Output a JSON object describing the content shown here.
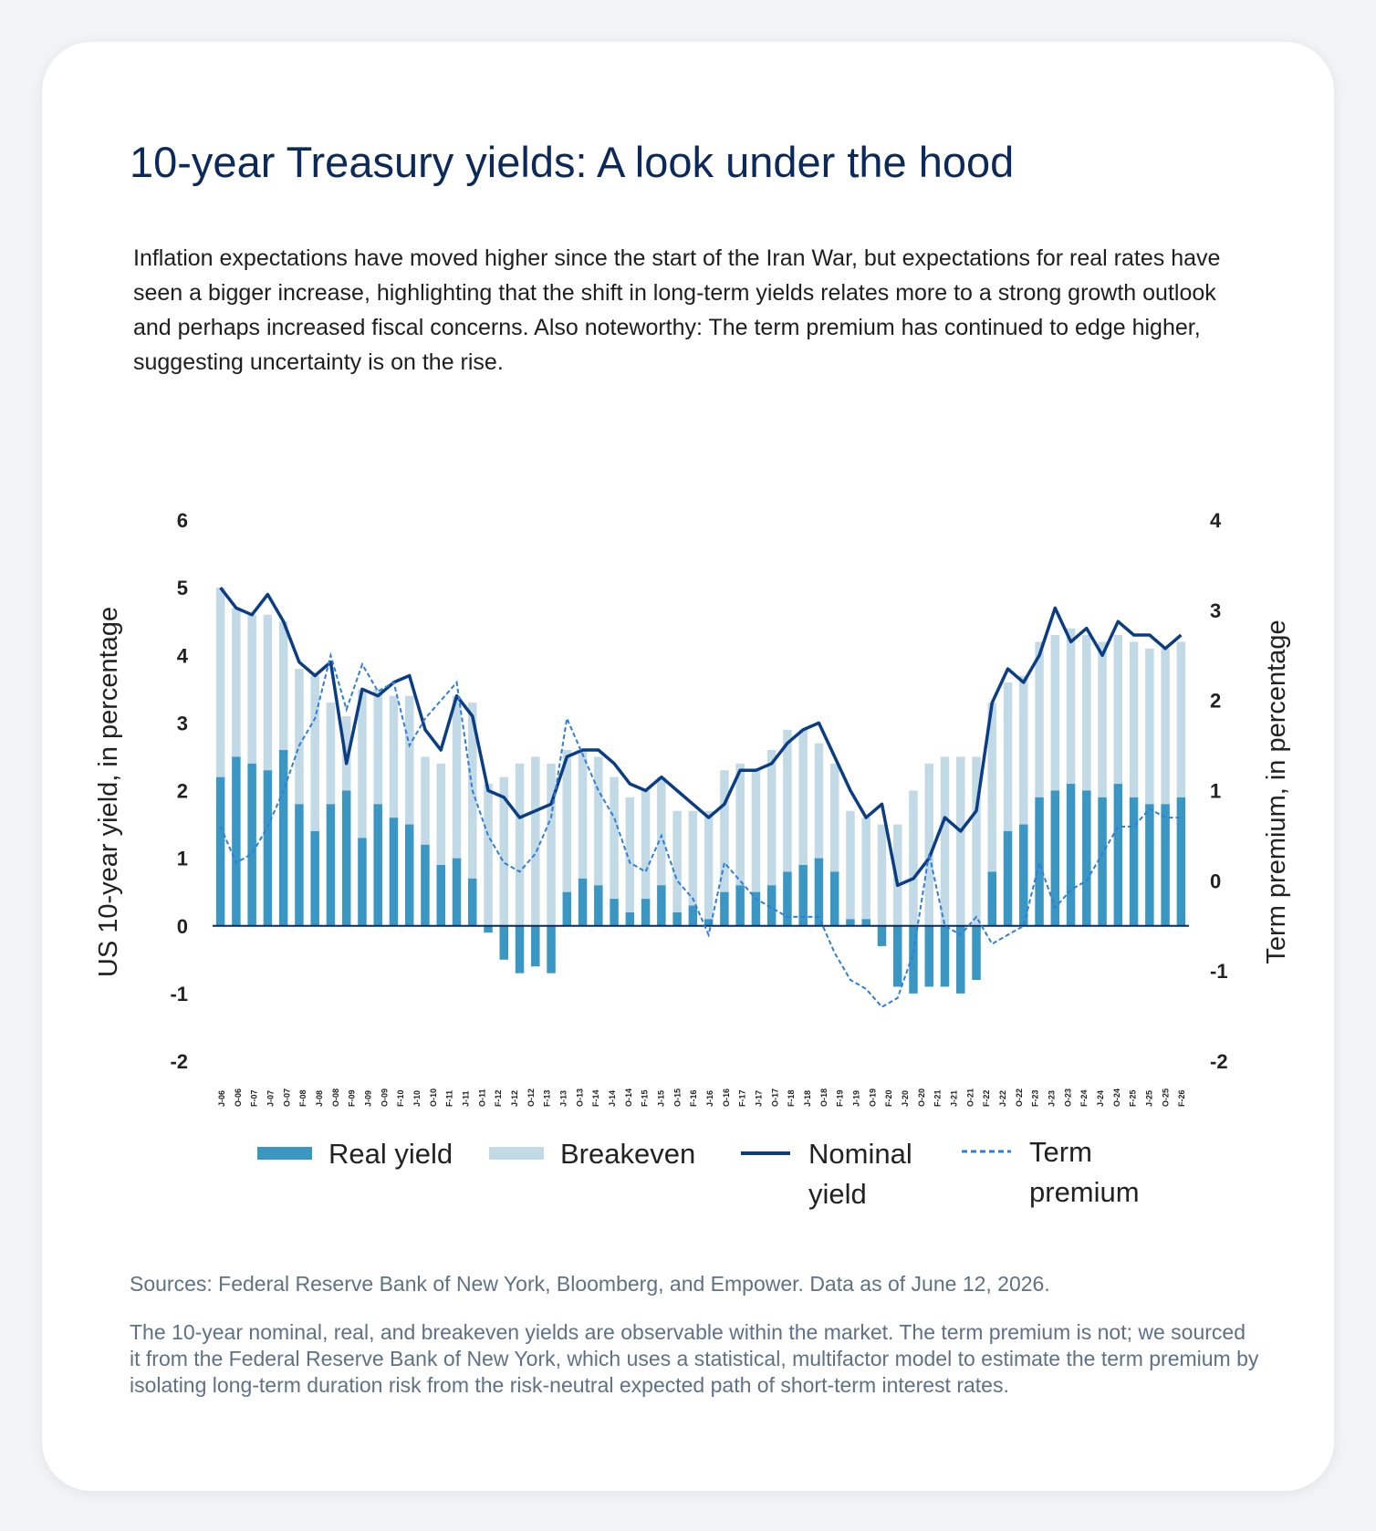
{
  "header": {
    "title": "10-year Treasury yields: A look under the hood",
    "intro": "Inflation expectations have moved higher since the start of the Iran War, but expectations for real rates have seen a bigger increase, highlighting that the shift in long-term yields relates more to a strong growth outlook and perhaps increased fiscal concerns. Also noteworthy: The term premium has continued to edge higher, suggesting uncertainty is on the rise."
  },
  "footer": {
    "sources": "Sources: Federal Reserve Bank of New York, Bloomberg, and Empower. Data as of June 12, 2026.",
    "note": "The 10-year nominal, real, and breakeven yields are observable within the market. The term premium is not; we sourced it from the Federal Reserve Bank of New York, which uses a statistical, multifactor model to estimate the term premium by isolating long-term duration risk from the risk-neutral expected path of short-term interest rates."
  },
  "colors": {
    "real_yield": "#3a97c4",
    "breakeven": "#c2d9e6",
    "nominal_yield": "#0b3d84",
    "term_premium": "#2f7fd6",
    "axis_text": "#222222",
    "title": "#0b2a5b"
  },
  "chart_data": {
    "type": "bar",
    "title": "",
    "ylabel": "US 10-year yield, in percentage",
    "ylabel_right": "Term premium, in percentage",
    "ylim": [
      -2,
      6
    ],
    "ylim_right": [
      -2,
      4
    ],
    "yticks": [
      -2,
      -1,
      0,
      1,
      2,
      3,
      4,
      5,
      6
    ],
    "yticks_right": [
      -2,
      -1,
      0,
      1,
      2,
      3,
      4
    ],
    "grid": false,
    "legend_position": "bottom",
    "stacked": true,
    "x_tick_labels": [
      "J-06",
      "O-06",
      "F-07",
      "J-07",
      "O-07",
      "F-08",
      "J-08",
      "O-08",
      "F-09",
      "J-09",
      "O-09",
      "F-10",
      "J-10",
      "O-10",
      "F-11",
      "J-11",
      "O-11",
      "F-12",
      "J-12",
      "O-12",
      "F-13",
      "J-13",
      "O-13",
      "F-14",
      "J-14",
      "O-14",
      "F-15",
      "J-15",
      "O-15",
      "F-16",
      "J-16",
      "O-16",
      "F-17",
      "J-17",
      "O-17",
      "F-18",
      "J-18",
      "O-18",
      "F-19",
      "J-19",
      "O-19",
      "F-20",
      "J-20",
      "O-20",
      "F-21",
      "J-21",
      "O-21",
      "F-22",
      "J-22",
      "O-22",
      "F-23",
      "J-23",
      "O-23",
      "F-24",
      "J-24",
      "O-24",
      "F-25",
      "J-25",
      "O-25",
      "F-26"
    ],
    "x": [
      "2006-01",
      "2006-05",
      "2006-09",
      "2007-01",
      "2007-05",
      "2007-09",
      "2008-01",
      "2008-05",
      "2008-09",
      "2009-01",
      "2009-05",
      "2009-09",
      "2010-01",
      "2010-05",
      "2010-09",
      "2011-01",
      "2011-05",
      "2011-09",
      "2012-01",
      "2012-05",
      "2012-09",
      "2013-01",
      "2013-05",
      "2013-09",
      "2014-01",
      "2014-05",
      "2014-09",
      "2015-01",
      "2015-05",
      "2015-09",
      "2016-01",
      "2016-05",
      "2016-09",
      "2017-01",
      "2017-05",
      "2017-09",
      "2018-01",
      "2018-05",
      "2018-09",
      "2019-01",
      "2019-05",
      "2019-09",
      "2020-01",
      "2020-05",
      "2020-09",
      "2021-01",
      "2021-05",
      "2021-09",
      "2022-01",
      "2022-05",
      "2022-09",
      "2023-01",
      "2023-05",
      "2023-09",
      "2024-01",
      "2024-05",
      "2024-09",
      "2025-01",
      "2025-05",
      "2025-09",
      "2026-01",
      "2026-05"
    ],
    "series": [
      {
        "name": "Real yield",
        "axis": "left",
        "kind": "bar",
        "values": [
          2.2,
          2.5,
          2.4,
          2.3,
          2.6,
          1.8,
          1.4,
          1.8,
          2.0,
          1.3,
          1.8,
          1.6,
          1.5,
          1.2,
          0.9,
          1.0,
          0.7,
          -0.1,
          -0.5,
          -0.7,
          -0.6,
          -0.7,
          0.5,
          0.7,
          0.6,
          0.4,
          0.2,
          0.4,
          0.6,
          0.2,
          0.3,
          0.1,
          0.5,
          0.6,
          0.5,
          0.6,
          0.8,
          0.9,
          1.0,
          0.8,
          0.1,
          0.1,
          -0.3,
          -0.9,
          -1.0,
          -0.9,
          -0.9,
          -1.0,
          -0.8,
          0.8,
          1.4,
          1.5,
          1.9,
          2.0,
          2.1,
          2.0,
          1.9,
          2.1,
          1.9,
          1.8,
          1.8,
          1.9
        ]
      },
      {
        "name": "Breakeven",
        "axis": "left",
        "kind": "bar",
        "values": [
          2.8,
          2.2,
          2.2,
          2.3,
          1.9,
          2.0,
          2.3,
          1.5,
          1.1,
          2.2,
          1.7,
          1.8,
          1.9,
          1.3,
          1.5,
          2.4,
          2.6,
          2.1,
          2.2,
          2.4,
          2.5,
          2.4,
          2.1,
          1.9,
          1.9,
          1.8,
          1.7,
          1.6,
          1.6,
          1.5,
          1.4,
          1.6,
          1.8,
          1.8,
          1.8,
          2.0,
          2.1,
          2.0,
          1.7,
          1.6,
          1.6,
          1.5,
          1.5,
          1.5,
          2.0,
          2.4,
          2.5,
          2.5,
          2.5,
          2.5,
          2.2,
          2.2,
          2.3,
          2.3,
          2.3,
          2.3,
          2.3,
          2.2,
          2.3,
          2.3,
          2.3,
          2.3
        ]
      },
      {
        "name": "Nominal yield",
        "axis": "left",
        "kind": "line",
        "values": [
          5.0,
          4.7,
          4.6,
          4.9,
          4.5,
          3.9,
          3.7,
          3.9,
          2.4,
          3.5,
          3.4,
          3.6,
          3.7,
          2.9,
          2.6,
          3.4,
          3.1,
          2.0,
          1.9,
          1.6,
          1.7,
          1.8,
          2.5,
          2.6,
          2.6,
          2.4,
          2.1,
          2.0,
          2.2,
          2.0,
          1.8,
          1.6,
          1.8,
          2.3,
          2.3,
          2.4,
          2.7,
          2.9,
          3.0,
          2.5,
          2.0,
          1.6,
          1.8,
          0.6,
          0.7,
          1.0,
          1.6,
          1.4,
          1.7,
          3.3,
          3.8,
          3.6,
          4.0,
          4.7,
          4.2,
          4.4,
          4.0,
          4.5,
          4.3,
          4.3,
          4.1,
          4.3
        ]
      },
      {
        "name": "Term premium",
        "axis": "right",
        "kind": "dashed-line",
        "values": [
          0.6,
          0.2,
          0.3,
          0.6,
          1.0,
          1.5,
          1.8,
          2.5,
          1.9,
          2.4,
          2.1,
          2.2,
          1.5,
          1.8,
          2.0,
          2.2,
          1.0,
          0.5,
          0.2,
          0.1,
          0.3,
          0.7,
          1.8,
          1.4,
          1.0,
          0.7,
          0.2,
          0.1,
          0.5,
          0.0,
          -0.2,
          -0.6,
          0.2,
          0.0,
          -0.2,
          -0.3,
          -0.4,
          -0.4,
          -0.4,
          -0.8,
          -1.1,
          -1.2,
          -1.4,
          -1.3,
          -0.8,
          0.3,
          -0.5,
          -0.6,
          -0.4,
          -0.7,
          -0.6,
          -0.5,
          0.2,
          -0.3,
          -0.1,
          0.0,
          0.3,
          0.6,
          0.6,
          0.8,
          0.7,
          0.7
        ]
      }
    ]
  }
}
